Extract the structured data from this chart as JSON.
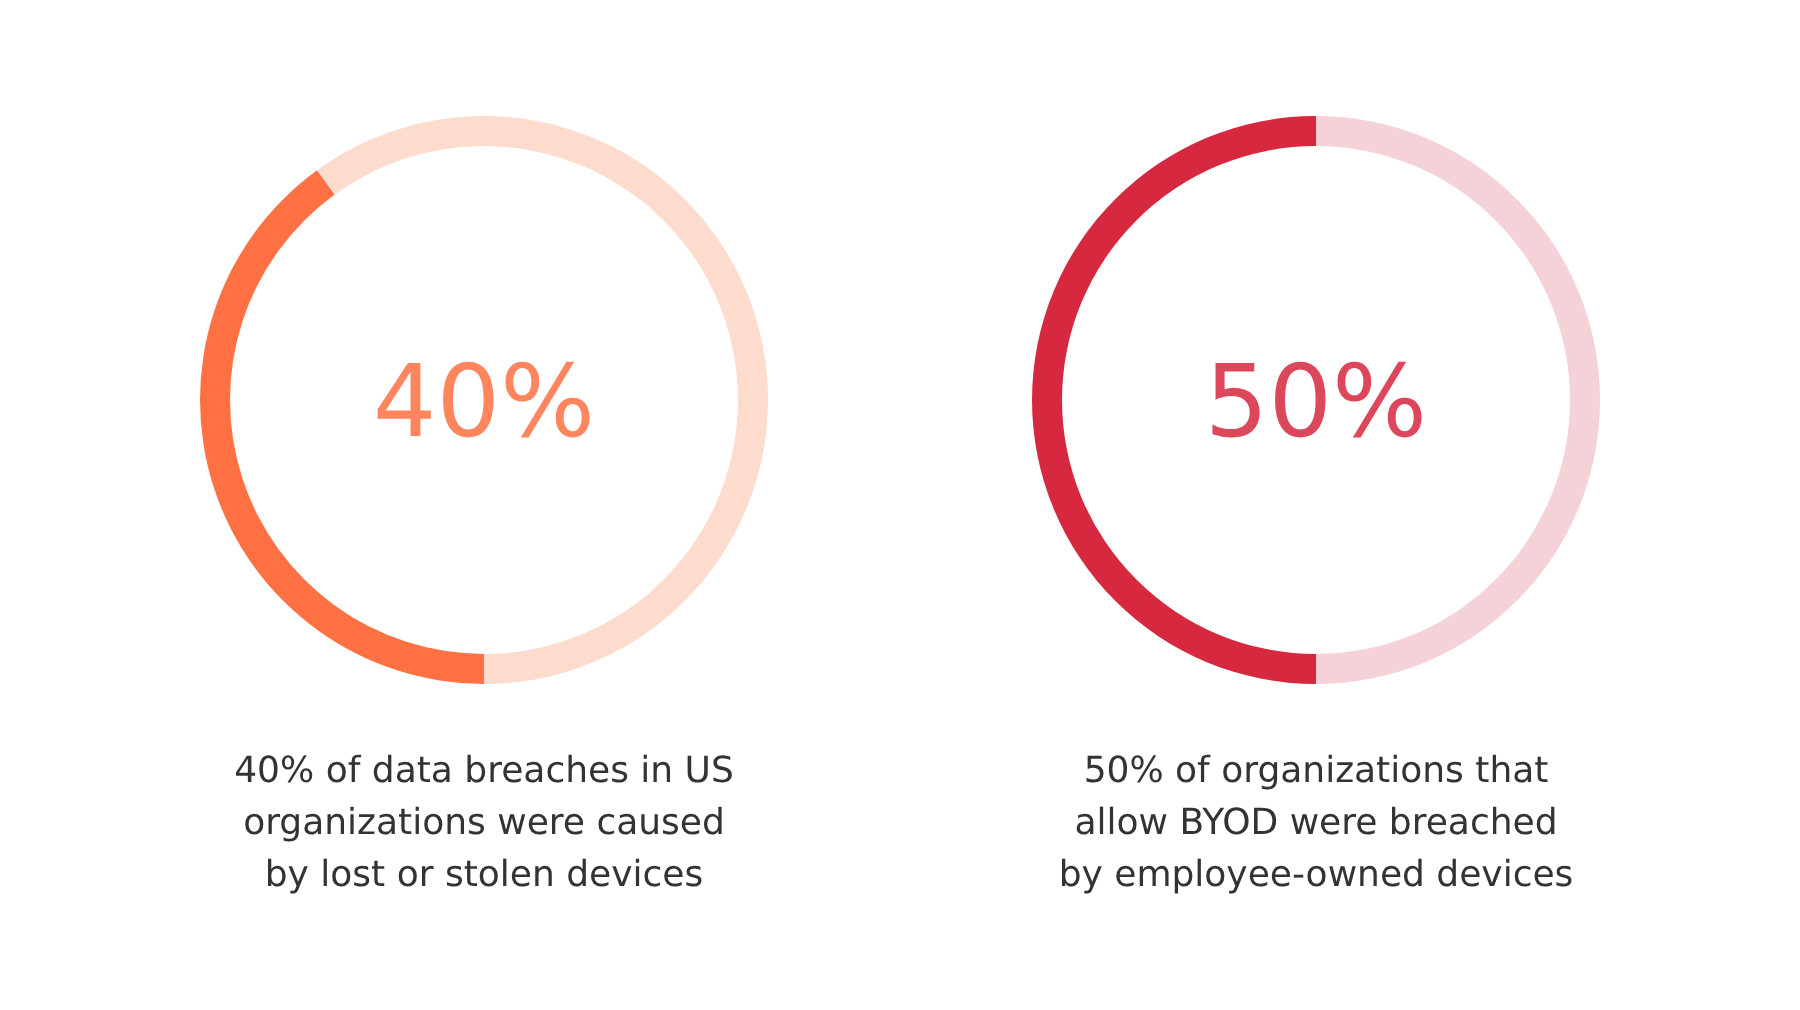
{
  "chart_data": [
    {
      "type": "donut",
      "title": "40% of data breaches in US\norganizations were caused\nby lost or stolen devices",
      "categories": [
        null,
        null
      ],
      "values": [
        40,
        60
      ],
      "colors": [
        "#ff7043",
        "#fddccd"
      ],
      "annotations": [
        "40%"
      ]
    },
    {
      "type": "donut",
      "title": "50% of organizations that\nallow BYOD were breached\nby employee-owned devices",
      "categories": [
        null,
        null
      ],
      "values": [
        50,
        50
      ],
      "colors": [
        "#d6283f",
        "#f5d2d8"
      ],
      "annotations": [
        "50%"
      ]
    }
  ]
}
